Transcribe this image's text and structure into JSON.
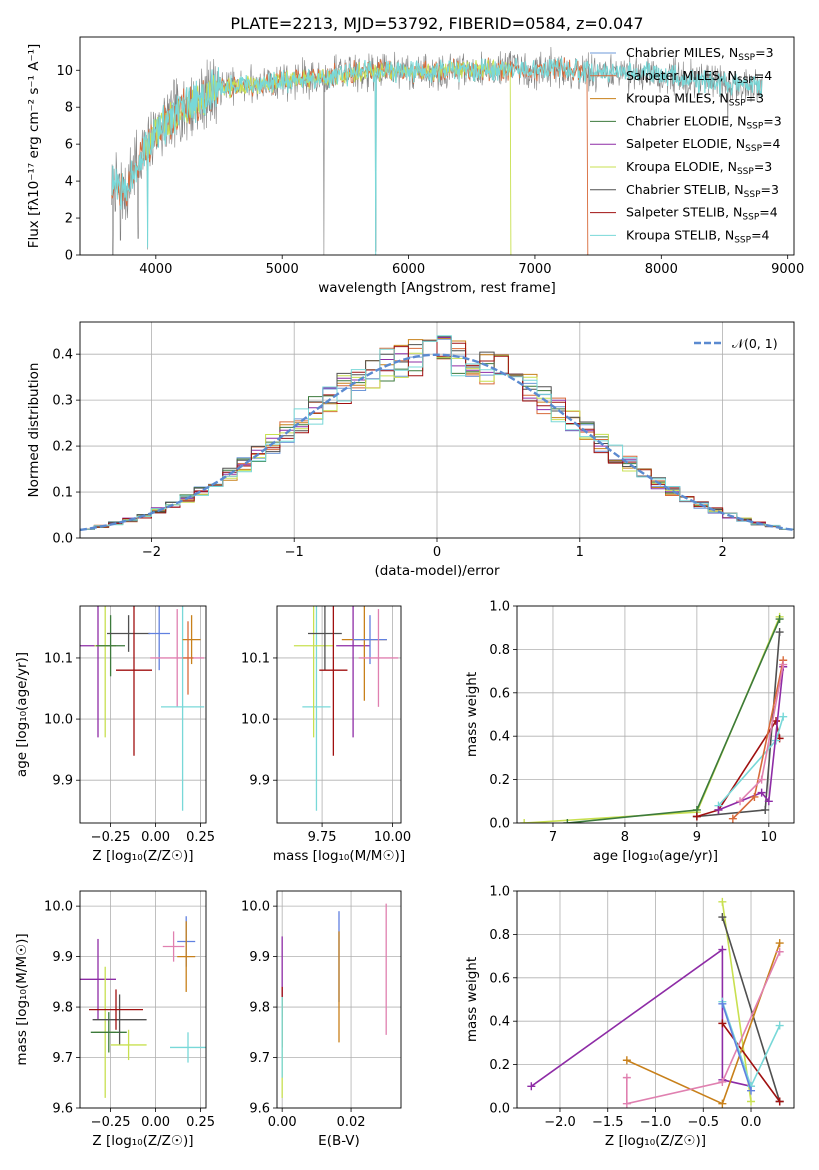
{
  "figure": {
    "title": "PLATE=2213, MJD=53792, FIBERID=0584, z=0.047",
    "colors": {
      "Chabrier MILES": "#6e98d8",
      "Salpeter MILES": "#d86a3a",
      "Kroupa MILES": "#c8801a",
      "Chabrier ELODIE": "#3c7a3c",
      "Salpeter ELODIE": "#8e2ca6",
      "Kroupa ELODIE": "#c8e050",
      "Chabrier STELIB": "#505050",
      "Salpeter STELIB": "#a01010",
      "Kroupa STELIB": "#78d8d8",
      "data": "#808080",
      "normal": "#5b8ad0",
      "pink": "#e080b0",
      "blue": "#6080e0"
    }
  },
  "chart_data": [
    {
      "id": "spectrum",
      "type": "line",
      "xlabel": "wavelength [Angstrom, rest frame]",
      "ylabel": "Flux [fλ10⁻¹⁷ erg cm⁻² s⁻¹ A⁻¹]",
      "xlim": [
        3400,
        9050
      ],
      "ylim": [
        0,
        11.8
      ],
      "xticks": [
        4000,
        5000,
        6000,
        7000,
        8000,
        9000
      ],
      "yticks": [
        0,
        2,
        4,
        6,
        8,
        10
      ],
      "legend_position": "right",
      "legend": [
        {
          "base": "Chabrier MILES, N",
          "sub": "SSP",
          "tail": "=3",
          "color": "Chabrier MILES"
        },
        {
          "base": "Salpeter MILES, N",
          "sub": "SSP",
          "tail": "=4",
          "color": "Salpeter MILES"
        },
        {
          "base": "Kroupa MILES, N",
          "sub": "SSP",
          "tail": "=3",
          "color": "Kroupa MILES"
        },
        {
          "base": "Chabrier ELODIE, N",
          "sub": "SSP",
          "tail": "=3",
          "color": "Chabrier ELODIE"
        },
        {
          "base": "Salpeter ELODIE, N",
          "sub": "SSP",
          "tail": "=4",
          "color": "Salpeter ELODIE"
        },
        {
          "base": "Kroupa ELODIE, N",
          "sub": "SSP",
          "tail": "=3",
          "color": "Kroupa ELODIE"
        },
        {
          "base": "Chabrier STELIB, N",
          "sub": "SSP",
          "tail": "=3",
          "color": "Chabrier STELIB"
        },
        {
          "base": "Salpeter STELIB, N",
          "sub": "SSP",
          "tail": "=4",
          "color": "Salpeter STELIB"
        },
        {
          "base": "Kroupa STELIB, N",
          "sub": "SSP",
          "tail": "=4",
          "color": "Kroupa STELIB"
        }
      ],
      "continuum": [
        [
          3650,
          4.0
        ],
        [
          3700,
          3.6
        ],
        [
          3750,
          3.3
        ],
        [
          3800,
          4.2
        ],
        [
          3850,
          5.0
        ],
        [
          3900,
          5.6
        ],
        [
          3950,
          5.8
        ],
        [
          4000,
          6.6
        ],
        [
          4100,
          7.3
        ],
        [
          4200,
          7.8
        ],
        [
          4300,
          8.2
        ],
        [
          4400,
          8.7
        ],
        [
          4500,
          9.0
        ],
        [
          4700,
          9.2
        ],
        [
          4900,
          9.3
        ],
        [
          5100,
          9.5
        ],
        [
          5300,
          9.6
        ],
        [
          5500,
          9.8
        ],
        [
          5700,
          9.9
        ],
        [
          5900,
          9.9
        ],
        [
          6100,
          9.9
        ],
        [
          6300,
          10.0
        ],
        [
          6500,
          10.0
        ],
        [
          6700,
          10.0
        ],
        [
          6900,
          10.0
        ],
        [
          7100,
          10.1
        ],
        [
          7300,
          10.0
        ],
        [
          7500,
          9.9
        ],
        [
          7700,
          9.9
        ],
        [
          7900,
          9.9
        ],
        [
          8100,
          9.7
        ],
        [
          8300,
          9.4
        ],
        [
          8500,
          9.3
        ],
        [
          8700,
          9.2
        ],
        [
          8800,
          9.1
        ]
      ],
      "miles_range": [
        3650,
        7420
      ],
      "elodie_range": [
        3900,
        6810
      ],
      "stelib_range": [
        3650,
        8800
      ]
    },
    {
      "id": "residuals",
      "type": "area",
      "xlabel": "(data-model)/error",
      "ylabel": "Normed distribution",
      "xlim": [
        -2.5,
        2.5
      ],
      "ylim": [
        0,
        0.47
      ],
      "xticks": [
        -2,
        -1,
        0,
        1,
        2
      ],
      "yticks": [
        0.0,
        0.1,
        0.2,
        0.3,
        0.4
      ],
      "legend": "𝒩(0, 1)",
      "legend_position": "top-right",
      "bin_width": 0.1
    },
    {
      "id": "age-vs-Z",
      "type": "scatter",
      "xlabel": "Z [log₁₀(Z/Z☉)]",
      "ylabel": "age  [log₁₀(age/yr)]",
      "xlim": [
        -0.42,
        0.28
      ],
      "ylim": [
        9.83,
        10.185
      ],
      "xticks": [
        -0.25,
        0.0,
        0.25
      ],
      "xtick_labels": [
        "−0.25",
        "0.00",
        "0.25"
      ],
      "yticks": [
        9.9,
        10.0,
        10.1
      ],
      "points": [
        {
          "x": -0.32,
          "y": 10.12,
          "xerr": 0.1,
          "yerr": 0.15,
          "c": "Salpeter ELODIE"
        },
        {
          "x": -0.28,
          "y": 10.12,
          "xerr": 0.06,
          "yerr": 0.15,
          "c": "Kroupa ELODIE"
        },
        {
          "x": -0.25,
          "y": 10.12,
          "xerr": 0.08,
          "yerr": 0.05,
          "c": "Chabrier ELODIE"
        },
        {
          "x": -0.15,
          "y": 10.14,
          "xerr": 0.12,
          "yerr": 0.03,
          "c": "Chabrier STELIB"
        },
        {
          "x": -0.12,
          "y": 10.08,
          "xerr": 0.1,
          "yerr": 0.14,
          "c": "Salpeter STELIB"
        },
        {
          "x": 0.02,
          "y": 10.14,
          "xerr": 0.06,
          "yerr": 0.06,
          "c": "blue"
        },
        {
          "x": 0.12,
          "y": 10.1,
          "xerr": 0.15,
          "yerr": 0.08,
          "c": "pink"
        },
        {
          "x": 0.15,
          "y": 10.02,
          "xerr": 0.12,
          "yerr": 0.17,
          "c": "Kroupa STELIB"
        },
        {
          "x": 0.2,
          "y": 10.13,
          "xerr": 0.05,
          "yerr": 0.04,
          "c": "Kroupa MILES"
        },
        {
          "x": 0.18,
          "y": 10.1,
          "xerr": 0.03,
          "yerr": 0.06,
          "c": "Salpeter MILES"
        }
      ]
    },
    {
      "id": "age-vs-mass",
      "type": "scatter",
      "xlabel": "mass [log₁₀(M/M☉)]",
      "xlim": [
        9.59,
        10.03
      ],
      "ylim": [
        9.83,
        10.185
      ],
      "xticks": [
        9.75,
        10.0
      ],
      "xtick_labels": [
        "9.75",
        "10.00"
      ],
      "yticks": [
        9.9,
        10.0,
        10.1
      ],
      "points": [
        {
          "x": 9.73,
          "y": 10.02,
          "xerr": 0.05,
          "yerr": 0.17,
          "c": "Kroupa STELIB"
        },
        {
          "x": 9.72,
          "y": 10.12,
          "xerr": 0.07,
          "yerr": 0.15,
          "c": "Kroupa ELODIE"
        },
        {
          "x": 9.76,
          "y": 10.14,
          "xerr": 0.06,
          "yerr": 0.06,
          "c": "Chabrier STELIB"
        },
        {
          "x": 9.79,
          "y": 10.08,
          "xerr": 0.05,
          "yerr": 0.14,
          "c": "Salpeter STELIB"
        },
        {
          "x": 9.86,
          "y": 10.12,
          "xerr": 0.06,
          "yerr": 0.15,
          "c": "Salpeter ELODIE"
        },
        {
          "x": 9.9,
          "y": 10.13,
          "xerr": 0.08,
          "yerr": 0.1,
          "c": "Kroupa MILES"
        },
        {
          "x": 9.92,
          "y": 10.13,
          "xerr": 0.06,
          "yerr": 0.04,
          "c": "blue"
        },
        {
          "x": 9.95,
          "y": 10.1,
          "xerr": 0.07,
          "yerr": 0.08,
          "c": "pink"
        }
      ]
    },
    {
      "id": "weight-vs-age",
      "type": "line",
      "xlabel": "age  [log₁₀(age/yr)]",
      "ylabel": "mass weight",
      "xlim": [
        6.5,
        10.35
      ],
      "ylim": [
        0,
        1
      ],
      "xticks": [
        7,
        8,
        9,
        10
      ],
      "yticks": [
        0.0,
        0.2,
        0.4,
        0.6,
        0.8,
        1.0
      ],
      "series": [
        {
          "c": "Kroupa ELODIE",
          "pts": [
            [
              6.6,
              0
            ],
            [
              9.0,
              0.05
            ],
            [
              10.15,
              0.95
            ]
          ]
        },
        {
          "c": "Chabrier ELODIE",
          "pts": [
            [
              7.2,
              0
            ],
            [
              9.0,
              0.06
            ],
            [
              10.15,
              0.94
            ]
          ]
        },
        {
          "c": "Chabrier STELIB",
          "pts": [
            [
              9.0,
              0.03
            ],
            [
              9.95,
              0.06
            ],
            [
              10.15,
              0.88
            ]
          ]
        },
        {
          "c": "Salpeter STELIB",
          "pts": [
            [
              9.0,
              0.03
            ],
            [
              9.3,
              0.06
            ],
            [
              10.1,
              0.47
            ],
            [
              10.15,
              0.39
            ]
          ]
        },
        {
          "c": "Kroupa STELIB",
          "pts": [
            [
              9.3,
              0.08
            ],
            [
              10.1,
              0.38
            ],
            [
              10.2,
              0.49
            ]
          ]
        },
        {
          "c": "Salpeter ELODIE",
          "pts": [
            [
              9.3,
              0.06
            ],
            [
              9.9,
              0.14
            ],
            [
              10.0,
              0.1
            ],
            [
              10.2,
              0.72
            ]
          ]
        },
        {
          "c": "Salpeter MILES",
          "pts": [
            [
              9.5,
              0.02
            ],
            [
              9.8,
              0.12
            ],
            [
              10.2,
              0.75
            ]
          ]
        },
        {
          "c": "pink",
          "pts": [
            [
              9.6,
              0.1
            ],
            [
              9.9,
              0.2
            ],
            [
              10.2,
              0.73
            ]
          ]
        }
      ]
    },
    {
      "id": "mass-vs-Z",
      "type": "scatter",
      "xlabel": "Z [log₁₀(Z/Z☉)]",
      "ylabel": "mass [log₁₀(M/M☉)]",
      "xlim": [
        -0.42,
        0.28
      ],
      "ylim": [
        9.6,
        10.03
      ],
      "xticks": [
        -0.25,
        0.0,
        0.25
      ],
      "xtick_labels": [
        "−0.25",
        "0.00",
        "0.25"
      ],
      "yticks": [
        9.6,
        9.7,
        9.8,
        9.9,
        10.0
      ],
      "points": [
        {
          "x": -0.32,
          "y": 9.855,
          "xerr": 0.1,
          "yerr": 0.08,
          "c": "Salpeter ELODIE"
        },
        {
          "x": -0.28,
          "y": 9.75,
          "xerr": 0.06,
          "yerr": 0.13,
          "c": "Kroupa ELODIE"
        },
        {
          "x": -0.26,
          "y": 9.75,
          "xerr": 0.1,
          "yerr": 0.04,
          "c": "Chabrier ELODIE"
        },
        {
          "x": -0.2,
          "y": 9.775,
          "xerr": 0.15,
          "yerr": 0.05,
          "c": "Chabrier STELIB"
        },
        {
          "x": -0.22,
          "y": 9.795,
          "xerr": 0.15,
          "yerr": 0.04,
          "c": "Salpeter STELIB"
        },
        {
          "x": -0.15,
          "y": 9.725,
          "xerr": 0.1,
          "yerr": 0.03,
          "c": "Kroupa ELODIE"
        },
        {
          "x": 0.1,
          "y": 9.92,
          "xerr": 0.06,
          "yerr": 0.03,
          "c": "pink"
        },
        {
          "x": 0.17,
          "y": 9.93,
          "xerr": 0.05,
          "yerr": 0.05,
          "c": "blue"
        },
        {
          "x": 0.17,
          "y": 9.9,
          "xerr": 0.05,
          "yerr": 0.07,
          "c": "Kroupa MILES"
        },
        {
          "x": 0.18,
          "y": 9.72,
          "xerr": 0.1,
          "yerr": 0.03,
          "c": "Kroupa STELIB"
        }
      ]
    },
    {
      "id": "mass-vs-ebv",
      "type": "scatter",
      "xlabel": "E(B-V)",
      "xlim": [
        -0.0015,
        0.0345
      ],
      "ylim": [
        9.6,
        10.03
      ],
      "xticks": [
        0.0,
        0.02
      ],
      "xtick_labels": [
        "0.00",
        "0.02"
      ],
      "yticks": [
        9.6,
        9.7,
        9.8,
        9.9,
        10.0
      ],
      "points": [
        {
          "x": 0.0,
          "y": 9.86,
          "yerr": 0.08,
          "c": "Salpeter ELODIE"
        },
        {
          "x": 0.0,
          "y": 9.78,
          "yerr": 0.06,
          "c": "Salpeter STELIB"
        },
        {
          "x": 0.0,
          "y": 9.72,
          "yerr": 0.1,
          "c": "Kroupa ELODIE"
        },
        {
          "x": 0.0,
          "y": 9.74,
          "yerr": 0.08,
          "c": "Kroupa STELIB"
        },
        {
          "x": 0.0165,
          "y": 9.9,
          "yerr": 0.09,
          "c": "blue"
        },
        {
          "x": 0.0165,
          "y": 9.84,
          "yerr": 0.11,
          "c": "Kroupa MILES"
        },
        {
          "x": 0.0302,
          "y": 9.875,
          "yerr": 0.13,
          "c": "pink"
        }
      ]
    },
    {
      "id": "weight-vs-Z",
      "type": "line",
      "xlabel": "Z [log₁₀(Z/Z☉)]",
      "ylabel": "mass weight",
      "xlim": [
        -2.45,
        0.45
      ],
      "ylim": [
        0,
        1
      ],
      "xticks": [
        -2.0,
        -1.5,
        -1.0,
        -0.5,
        0.0
      ],
      "xtick_labels": [
        "−2.0",
        "−1.5",
        "−1.0",
        "−0.5",
        "0.0"
      ],
      "yticks": [
        0.0,
        0.2,
        0.4,
        0.6,
        0.8,
        1.0
      ],
      "series": [
        {
          "c": "Salpeter ELODIE",
          "pts": [
            [
              -2.3,
              0.1
            ],
            [
              -0.3,
              0.73
            ],
            [
              -0.3,
              0.13
            ],
            [
              0.0,
              0.1
            ]
          ]
        },
        {
          "c": "Kroupa ELODIE",
          "pts": [
            [
              -0.3,
              0.95
            ],
            [
              0.0,
              0.03
            ]
          ]
        },
        {
          "c": "Chabrier STELIB",
          "pts": [
            [
              -0.3,
              0.88
            ],
            [
              0.3,
              0.03
            ]
          ]
        },
        {
          "c": "Salpeter STELIB",
          "pts": [
            [
              -0.3,
              0.39
            ],
            [
              0.3,
              0.03
            ]
          ]
        },
        {
          "c": "Kroupa MILES",
          "pts": [
            [
              -1.3,
              0.22
            ],
            [
              -0.3,
              0.02
            ],
            [
              0.3,
              0.76
            ]
          ]
        },
        {
          "c": "pink",
          "pts": [
            [
              -1.3,
              0.14
            ],
            [
              -1.3,
              0.02
            ],
            [
              -0.3,
              0.12
            ],
            [
              0.3,
              0.72
            ]
          ]
        },
        {
          "c": "Kroupa STELIB",
          "pts": [
            [
              -0.3,
              0.49
            ],
            [
              0.0,
              0.1
            ],
            [
              0.3,
              0.38
            ]
          ]
        },
        {
          "c": "blue",
          "pts": [
            [
              -0.3,
              0.48
            ],
            [
              0.0,
              0.08
            ]
          ]
        }
      ]
    }
  ]
}
